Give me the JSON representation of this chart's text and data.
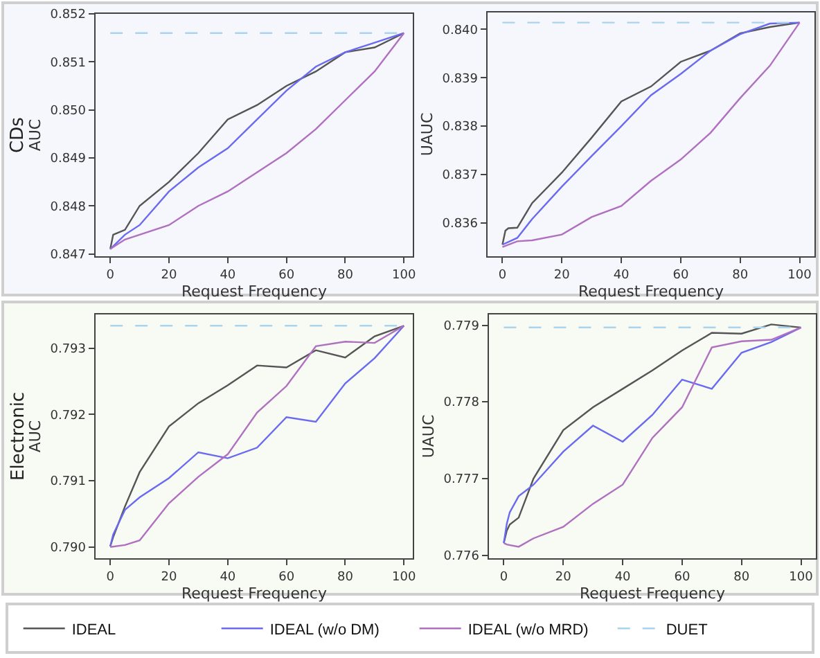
{
  "chart_data": [
    {
      "type": "line",
      "title": "CDs",
      "xlabel": "Request Frequency",
      "ylabel": "AUC",
      "legend": "bottom",
      "xlim": [
        -5,
        103
      ],
      "ylim": [
        0.84695,
        0.852
      ],
      "xticks": [
        0,
        20,
        40,
        60,
        80,
        100
      ],
      "yticks": [
        0.847,
        0.848,
        0.849,
        {
          "value": 0.85,
          "label": "0.850"
        },
        0.851,
        0.852
      ],
      "series": [
        {
          "name": "IDEAL",
          "color": "#555555",
          "x": [
            0,
            1,
            5,
            10,
            20,
            30,
            40,
            50,
            60,
            70,
            80,
            90,
            100
          ],
          "values": [
            0.8471,
            0.8474,
            0.8475,
            0.848,
            0.8485,
            0.8491,
            0.8498,
            0.8501,
            0.8505,
            0.8508,
            0.8512,
            0.8513,
            0.8516
          ]
        },
        {
          "name": "IDEAL (w/o DM)",
          "color": "#6a6af0",
          "x": [
            0,
            5,
            10,
            20,
            30,
            40,
            50,
            60,
            70,
            80,
            90,
            100
          ],
          "values": [
            0.8471,
            0.8474,
            0.8476,
            0.8483,
            0.8488,
            0.8492,
            0.8498,
            0.8504,
            0.8509,
            0.8512,
            0.8514,
            0.8516
          ]
        },
        {
          "name": "IDEAL (w/o MRD)",
          "color": "#b070c0",
          "x": [
            0,
            5,
            10,
            20,
            30,
            40,
            50,
            60,
            70,
            80,
            90,
            100
          ],
          "values": [
            0.8471,
            0.8473,
            0.8474,
            0.8476,
            0.848,
            0.8483,
            0.8487,
            0.8491,
            0.8496,
            0.8502,
            0.8508,
            0.8516
          ]
        },
        {
          "name": "DUET",
          "color": "#a8d4ee",
          "line_style": "dashed",
          "x": [
            0,
            100
          ],
          "values": [
            0.8516,
            0.8516
          ]
        }
      ]
    },
    {
      "type": "line",
      "xlabel": "Request Frequency",
      "ylabel": "UAUC",
      "xlim": [
        -5,
        105
      ],
      "ylim": [
        0.83531,
        0.84035
      ],
      "xticks": [
        0,
        20,
        40,
        60,
        80,
        100
      ],
      "yticks": [
        0.836,
        0.837,
        0.838,
        0.839,
        {
          "value": 0.84,
          "label": "0.840"
        }
      ],
      "series": [
        {
          "color": "#555555",
          "x": [
            0,
            1,
            2,
            5,
            10,
            20,
            30,
            40,
            50,
            60,
            70,
            80,
            90,
            100
          ],
          "values": [
            0.83555,
            0.83584,
            0.83589,
            0.8359,
            0.83641,
            0.83704,
            0.83776,
            0.83851,
            0.83882,
            0.83933,
            0.83956,
            0.83992,
            0.84005,
            0.84014
          ]
        },
        {
          "color": "#6a6af0",
          "x": [
            0,
            5,
            10,
            20,
            30,
            40,
            50,
            60,
            70,
            80,
            90,
            100
          ],
          "values": [
            0.83555,
            0.83569,
            0.83608,
            0.83675,
            0.83738,
            0.838,
            0.83864,
            0.83908,
            0.83956,
            0.8399,
            0.84012,
            0.84014
          ]
        },
        {
          "color": "#b070c0",
          "x": [
            0,
            5,
            10,
            20,
            30,
            40,
            50,
            60,
            70,
            80,
            90,
            100
          ],
          "values": [
            0.8355,
            0.83562,
            0.83564,
            0.83576,
            0.83612,
            0.83635,
            0.83687,
            0.83731,
            0.83786,
            0.83858,
            0.83925,
            0.84014
          ]
        },
        {
          "color": "#a8d4ee",
          "line_style": "dashed",
          "x": [
            0,
            100
          ],
          "values": [
            0.84014,
            0.84014
          ]
        }
      ]
    },
    {
      "type": "line",
      "title": "Electronic",
      "xlabel": "Request Frequency",
      "ylabel": "AUC",
      "xlim": [
        -5,
        103
      ],
      "ylim": [
        0.78983,
        0.79351
      ],
      "xticks": [
        0,
        20,
        40,
        60,
        80,
        100
      ],
      "yticks": [
        {
          "value": 0.79,
          "label": "0.790"
        },
        0.791,
        0.792,
        0.793
      ],
      "series": [
        {
          "color": "#555555",
          "x": [
            0,
            1,
            5,
            10,
            20,
            30,
            40,
            50,
            60,
            70,
            80,
            90,
            100
          ],
          "values": [
            0.79001,
            0.79015,
            0.79061,
            0.79113,
            0.79182,
            0.79217,
            0.79244,
            0.79274,
            0.79271,
            0.79297,
            0.79286,
            0.79318,
            0.79334
          ]
        },
        {
          "color": "#6a6af0",
          "x": [
            0,
            1,
            5,
            10,
            20,
            30,
            40,
            50,
            60,
            70,
            80,
            90,
            100
          ],
          "values": [
            0.79001,
            0.79019,
            0.79056,
            0.79075,
            0.79104,
            0.79143,
            0.79134,
            0.7915,
            0.79196,
            0.79189,
            0.79247,
            0.79285,
            0.79334
          ]
        },
        {
          "color": "#b070c0",
          "x": [
            0,
            5,
            10,
            20,
            30,
            40,
            50,
            60,
            70,
            80,
            90,
            100
          ],
          "values": [
            0.79,
            0.79003,
            0.7901,
            0.79066,
            0.79106,
            0.7914,
            0.79203,
            0.79243,
            0.79303,
            0.7931,
            0.79308,
            0.79334
          ]
        },
        {
          "color": "#a8d4ee",
          "line_style": "dashed",
          "x": [
            0,
            100
          ],
          "values": [
            0.79334,
            0.79334
          ]
        }
      ]
    },
    {
      "type": "line",
      "xlabel": "Request Frequency",
      "ylabel": "UAUC",
      "xlim": [
        -5,
        105
      ],
      "ylim": [
        0.77596,
        0.77914
      ],
      "xticks": [
        0,
        20,
        40,
        60,
        80,
        100
      ],
      "yticks": [
        0.776,
        0.777,
        0.778,
        0.779
      ],
      "series": [
        {
          "color": "#555555",
          "x": [
            0,
            1,
            2,
            5,
            10,
            20,
            30,
            40,
            50,
            60,
            70,
            80,
            90,
            100
          ],
          "values": [
            0.77616,
            0.77632,
            0.7764,
            0.77649,
            0.777,
            0.77763,
            0.77793,
            0.77817,
            0.77841,
            0.77867,
            0.7789,
            0.77889,
            0.77901,
            0.77897
          ]
        },
        {
          "color": "#6a6af0",
          "x": [
            0,
            1,
            2,
            5,
            10,
            20,
            30,
            40,
            50,
            60,
            70,
            80,
            90,
            100
          ],
          "values": [
            0.77616,
            0.77641,
            0.77656,
            0.77677,
            0.77692,
            0.77735,
            0.77769,
            0.77748,
            0.77783,
            0.77829,
            0.77817,
            0.77864,
            0.77878,
            0.77897
          ]
        },
        {
          "color": "#b070c0",
          "x": [
            0,
            1,
            5,
            10,
            20,
            30,
            40,
            50,
            60,
            70,
            80,
            90,
            100
          ],
          "values": [
            0.77616,
            0.77614,
            0.77611,
            0.77622,
            0.77637,
            0.77667,
            0.77692,
            0.77753,
            0.77793,
            0.77871,
            0.77879,
            0.77881,
            0.77897
          ]
        },
        {
          "color": "#a8d4ee",
          "line_style": "dashed",
          "x": [
            0,
            100
          ],
          "values": [
            0.77897,
            0.77897
          ]
        }
      ]
    }
  ]
}
